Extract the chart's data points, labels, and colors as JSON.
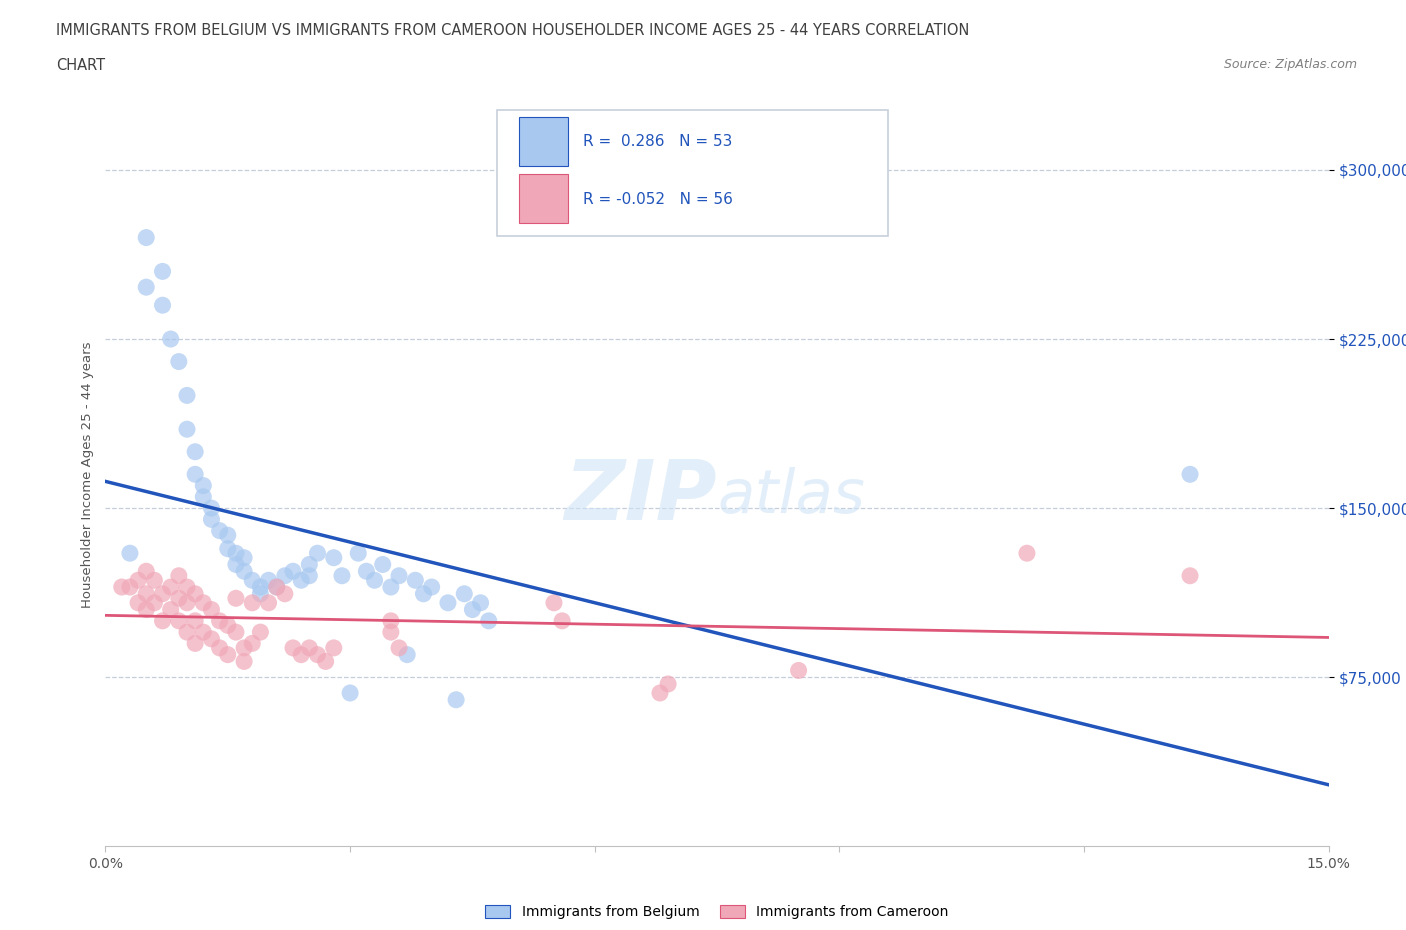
{
  "title_line1": "IMMIGRANTS FROM BELGIUM VS IMMIGRANTS FROM CAMEROON HOUSEHOLDER INCOME AGES 25 - 44 YEARS CORRELATION",
  "title_line2": "CHART",
  "source": "Source: ZipAtlas.com",
  "ylabel": "Householder Income Ages 25 - 44 years",
  "xlim": [
    0.0,
    0.15
  ],
  "ylim": [
    0,
    330000
  ],
  "yticks": [
    75000,
    150000,
    225000,
    300000
  ],
  "ytick_labels": [
    "$75,000",
    "$150,000",
    "$225,000",
    "$300,000"
  ],
  "xticks": [
    0.0,
    0.03,
    0.06,
    0.09,
    0.12,
    0.15
  ],
  "xtick_labels": [
    "0.0%",
    "",
    "",
    "",
    "",
    "15.0%"
  ],
  "color_belgium": "#a8c8f0",
  "color_cameroon": "#f0a8b8",
  "trendline_belgium_color": "#2255bb",
  "trendline_cameroon_color": "#dd5577",
  "watermark_zip": "ZIP",
  "watermark_atlas": "atlas",
  "R_belgium": 0.286,
  "N_belgium": 53,
  "R_cameroon": -0.052,
  "N_cameroon": 56,
  "belgium_x": [
    0.003,
    0.005,
    0.005,
    0.007,
    0.007,
    0.008,
    0.009,
    0.01,
    0.01,
    0.011,
    0.011,
    0.012,
    0.012,
    0.013,
    0.013,
    0.014,
    0.015,
    0.015,
    0.016,
    0.016,
    0.017,
    0.017,
    0.018,
    0.019,
    0.019,
    0.02,
    0.021,
    0.022,
    0.023,
    0.024,
    0.025,
    0.025,
    0.026,
    0.028,
    0.029,
    0.03,
    0.031,
    0.032,
    0.033,
    0.034,
    0.035,
    0.036,
    0.037,
    0.038,
    0.039,
    0.04,
    0.042,
    0.043,
    0.044,
    0.045,
    0.046,
    0.047,
    0.133
  ],
  "belgium_y": [
    130000,
    270000,
    248000,
    255000,
    240000,
    225000,
    215000,
    200000,
    185000,
    175000,
    165000,
    160000,
    155000,
    150000,
    145000,
    140000,
    138000,
    132000,
    130000,
    125000,
    128000,
    122000,
    118000,
    115000,
    112000,
    118000,
    115000,
    120000,
    122000,
    118000,
    125000,
    120000,
    130000,
    128000,
    120000,
    68000,
    130000,
    122000,
    118000,
    125000,
    115000,
    120000,
    85000,
    118000,
    112000,
    115000,
    108000,
    65000,
    112000,
    105000,
    108000,
    100000,
    165000
  ],
  "cameroon_x": [
    0.002,
    0.003,
    0.004,
    0.004,
    0.005,
    0.005,
    0.005,
    0.006,
    0.006,
    0.007,
    0.007,
    0.008,
    0.008,
    0.009,
    0.009,
    0.009,
    0.01,
    0.01,
    0.01,
    0.011,
    0.011,
    0.011,
    0.012,
    0.012,
    0.013,
    0.013,
    0.014,
    0.014,
    0.015,
    0.015,
    0.016,
    0.016,
    0.017,
    0.017,
    0.018,
    0.018,
    0.019,
    0.02,
    0.021,
    0.022,
    0.023,
    0.024,
    0.025,
    0.026,
    0.027,
    0.028,
    0.035,
    0.035,
    0.036,
    0.055,
    0.056,
    0.068,
    0.069,
    0.085,
    0.113,
    0.133
  ],
  "cameroon_y": [
    115000,
    115000,
    118000,
    108000,
    122000,
    112000,
    105000,
    118000,
    108000,
    112000,
    100000,
    115000,
    105000,
    120000,
    110000,
    100000,
    115000,
    108000,
    95000,
    112000,
    100000,
    90000,
    108000,
    95000,
    105000,
    92000,
    100000,
    88000,
    98000,
    85000,
    95000,
    110000,
    88000,
    82000,
    108000,
    90000,
    95000,
    108000,
    115000,
    112000,
    88000,
    85000,
    88000,
    85000,
    82000,
    88000,
    100000,
    95000,
    88000,
    108000,
    100000,
    68000,
    72000,
    78000,
    130000,
    120000
  ]
}
